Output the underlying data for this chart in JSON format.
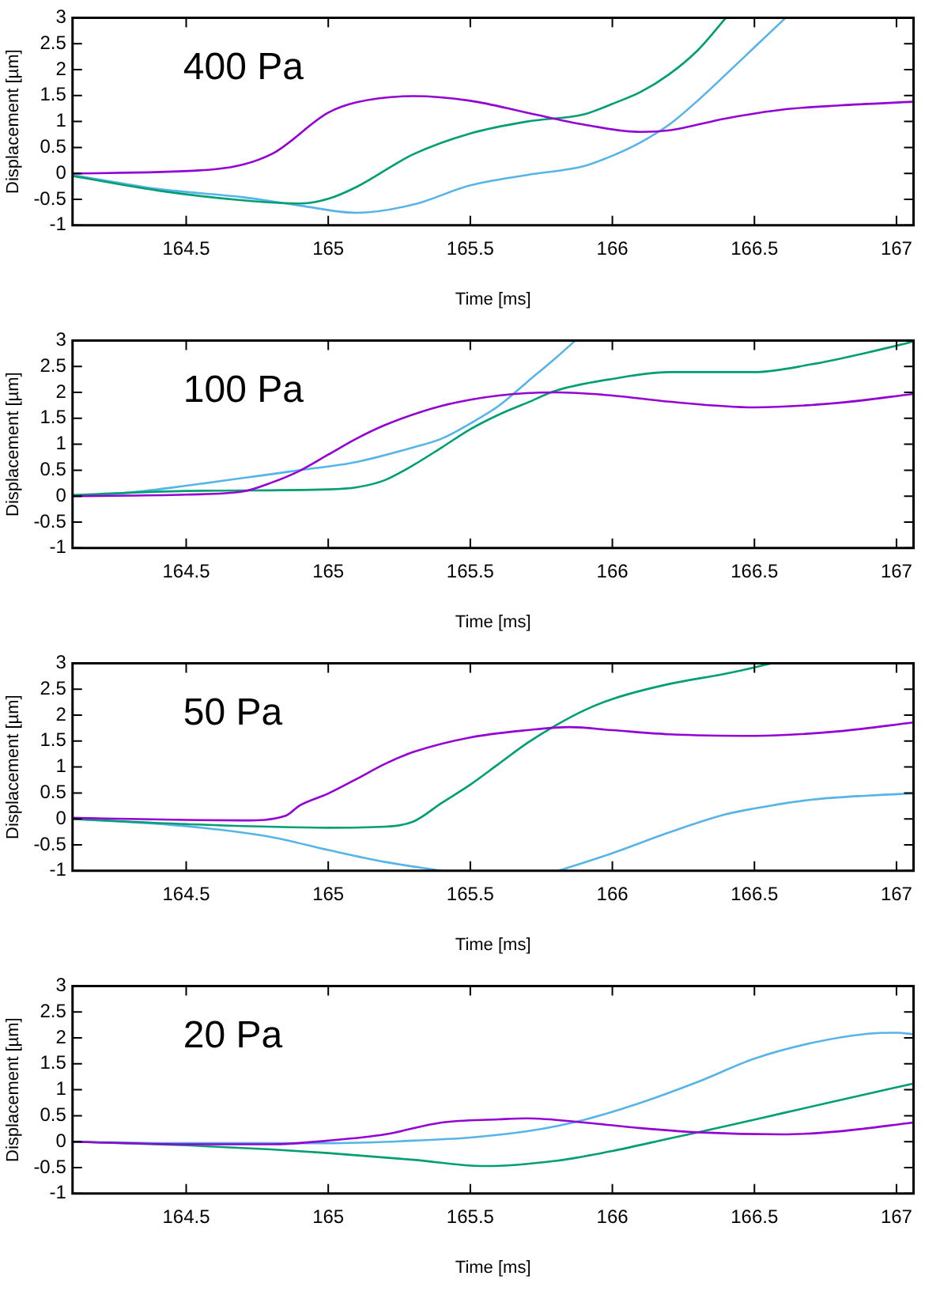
{
  "chart_data": [
    {
      "type": "line",
      "annotations": [
        "400 Pa"
      ],
      "xlabel": "Time [ms]",
      "ylabel": "Displacement [µm]",
      "xlim": [
        164.1,
        167.06
      ],
      "xticks": [
        164.5,
        165,
        165.5,
        166,
        166.5,
        167
      ],
      "ylim": [
        -1,
        3
      ],
      "yticks": [
        -1,
        -0.5,
        0,
        0.5,
        1,
        1.5,
        2,
        2.5,
        3
      ],
      "series": [
        {
          "color": "#9400d3",
          "x": [
            164.1,
            164.6,
            164.8,
            165.0,
            165.1,
            165.3,
            165.5,
            165.7,
            165.9,
            166.1,
            166.2,
            166.4,
            166.6,
            166.8,
            167.06
          ],
          "values": [
            0,
            0.08,
            0.37,
            1.17,
            1.37,
            1.49,
            1.4,
            1.17,
            0.94,
            0.8,
            0.83,
            1.06,
            1.23,
            1.31,
            1.38
          ]
        },
        {
          "color": "#009e73",
          "x": [
            164.1,
            164.4,
            164.7,
            164.9,
            165.0,
            165.1,
            165.3,
            165.5,
            165.7,
            165.9,
            166.0,
            166.1,
            166.2,
            166.3,
            166.4
          ],
          "values": [
            -0.05,
            -0.33,
            -0.52,
            -0.58,
            -0.49,
            -0.26,
            0.37,
            0.77,
            1.0,
            1.14,
            1.34,
            1.57,
            1.91,
            2.37,
            3
          ]
        },
        {
          "color": "#56b4e9",
          "x": [
            164.1,
            164.4,
            164.7,
            164.9,
            165.1,
            165.3,
            165.5,
            165.7,
            165.9,
            166.0,
            166.1,
            166.2,
            166.3,
            166.4,
            166.5,
            166.61
          ],
          "values": [
            -0.03,
            -0.3,
            -0.46,
            -0.62,
            -0.76,
            -0.6,
            -0.23,
            -0.03,
            0.14,
            0.34,
            0.6,
            0.94,
            1.4,
            1.91,
            2.43,
            3
          ]
        }
      ]
    },
    {
      "type": "line",
      "annotations": [
        "100 Pa"
      ],
      "xlabel": "Time [ms]",
      "ylabel": "Displacement [µm]",
      "xlim": [
        164.1,
        167.06
      ],
      "xticks": [
        164.5,
        165,
        165.5,
        166,
        166.5,
        167
      ],
      "ylim": [
        -1,
        3
      ],
      "yticks": [
        -1,
        -0.5,
        0,
        0.5,
        1,
        1.5,
        2,
        2.5,
        3
      ],
      "series": [
        {
          "color": "#9400d3",
          "x": [
            164.1,
            164.5,
            164.7,
            164.8,
            164.9,
            165.0,
            165.1,
            165.2,
            165.4,
            165.6,
            165.8,
            166.0,
            166.2,
            166.5,
            166.8,
            167.06
          ],
          "values": [
            0,
            0.03,
            0.09,
            0.26,
            0.49,
            0.8,
            1.11,
            1.37,
            1.74,
            1.94,
            2.0,
            1.94,
            1.82,
            1.71,
            1.8,
            1.97
          ]
        },
        {
          "color": "#009e73",
          "x": [
            164.1,
            164.5,
            165.0,
            165.1,
            165.2,
            165.3,
            165.4,
            165.5,
            165.6,
            165.7,
            165.8,
            166.0,
            166.2,
            166.5,
            166.7,
            166.9,
            167.06
          ],
          "values": [
            0.02,
            0.1,
            0.13,
            0.17,
            0.31,
            0.6,
            0.94,
            1.29,
            1.57,
            1.8,
            2.03,
            2.26,
            2.39,
            2.39,
            2.54,
            2.77,
            2.98
          ]
        },
        {
          "color": "#56b4e9",
          "x": [
            164.1,
            164.3,
            164.5,
            164.7,
            164.9,
            165.1,
            165.3,
            165.4,
            165.5,
            165.6,
            165.7,
            165.8,
            165.87
          ],
          "values": [
            0,
            0.07,
            0.2,
            0.35,
            0.5,
            0.66,
            0.94,
            1.11,
            1.4,
            1.74,
            2.2,
            2.66,
            3
          ]
        }
      ]
    },
    {
      "type": "line",
      "annotations": [
        "50 Pa"
      ],
      "xlabel": "Time [ms]",
      "ylabel": "Displacement [µm]",
      "xlim": [
        164.1,
        167.06
      ],
      "xticks": [
        164.5,
        165,
        165.5,
        166,
        166.5,
        167
      ],
      "ylim": [
        -1,
        3
      ],
      "yticks": [
        -1,
        -0.5,
        0,
        0.5,
        1,
        1.5,
        2,
        2.5,
        3
      ],
      "series": [
        {
          "color": "#9400d3",
          "x": [
            164.1,
            164.5,
            164.7,
            164.85,
            164.9,
            165.0,
            165.1,
            165.2,
            165.3,
            165.5,
            165.7,
            165.85,
            166.0,
            166.2,
            166.5,
            166.8,
            167.06
          ],
          "values": [
            0.02,
            -0.02,
            -0.03,
            0.06,
            0.26,
            0.49,
            0.77,
            1.06,
            1.29,
            1.57,
            1.71,
            1.77,
            1.71,
            1.63,
            1.6,
            1.69,
            1.86
          ]
        },
        {
          "color": "#009e73",
          "x": [
            164.1,
            164.5,
            165.0,
            165.2,
            165.3,
            165.4,
            165.5,
            165.6,
            165.7,
            165.8,
            165.9,
            166.0,
            166.2,
            166.4,
            166.5,
            166.56
          ],
          "values": [
            0,
            -0.1,
            -0.17,
            -0.15,
            -0.05,
            0.31,
            0.66,
            1.06,
            1.46,
            1.8,
            2.09,
            2.31,
            2.6,
            2.8,
            2.92,
            3
          ]
        },
        {
          "color": "#56b4e9",
          "x": [
            164.1,
            164.5,
            164.8,
            165.0,
            165.2,
            165.4,
            165.6,
            165.81,
            166.0,
            166.2,
            166.4,
            166.5,
            166.7,
            166.9,
            167.06
          ],
          "values": [
            0,
            -0.14,
            -0.35,
            -0.6,
            -0.83,
            -1,
            null,
            -1,
            -0.66,
            -0.26,
            0.09,
            0.2,
            0.37,
            0.45,
            0.49
          ]
        }
      ]
    },
    {
      "type": "line",
      "annotations": [
        "20 Pa"
      ],
      "xlabel": "Time [ms]",
      "ylabel": "Displacement [µm]",
      "xlim": [
        164.1,
        167.06
      ],
      "xticks": [
        164.5,
        165,
        165.5,
        166,
        166.5,
        167
      ],
      "ylim": [
        -1,
        3
      ],
      "yticks": [
        -1,
        -0.5,
        0,
        0.5,
        1,
        1.5,
        2,
        2.5,
        3
      ],
      "series": [
        {
          "color": "#9400d3",
          "x": [
            164.1,
            164.5,
            164.8,
            165.0,
            165.2,
            165.4,
            165.6,
            165.7,
            165.9,
            166.1,
            166.3,
            166.6,
            166.8,
            167.06
          ],
          "values": [
            0,
            -0.05,
            -0.05,
            0.02,
            0.14,
            0.37,
            0.43,
            0.45,
            0.37,
            0.26,
            0.18,
            0.14,
            0.2,
            0.37
          ]
        },
        {
          "color": "#009e73",
          "x": [
            164.1,
            164.5,
            164.8,
            165.0,
            165.3,
            165.55,
            165.8,
            166.0,
            166.2,
            166.4,
            166.6,
            166.8,
            167.06
          ],
          "values": [
            0,
            -0.07,
            -0.15,
            -0.22,
            -0.35,
            -0.47,
            -0.37,
            -0.18,
            0.06,
            0.3,
            0.55,
            0.8,
            1.12
          ]
        },
        {
          "color": "#56b4e9",
          "x": [
            164.1,
            164.5,
            165.0,
            165.3,
            165.5,
            165.7,
            165.9,
            166.1,
            166.3,
            166.5,
            166.7,
            166.9,
            167.0,
            167.06
          ],
          "values": [
            0,
            -0.03,
            -0.03,
            0.02,
            0.08,
            0.2,
            0.42,
            0.75,
            1.15,
            1.6,
            1.9,
            2.08,
            2.1,
            2.07
          ]
        }
      ]
    }
  ]
}
